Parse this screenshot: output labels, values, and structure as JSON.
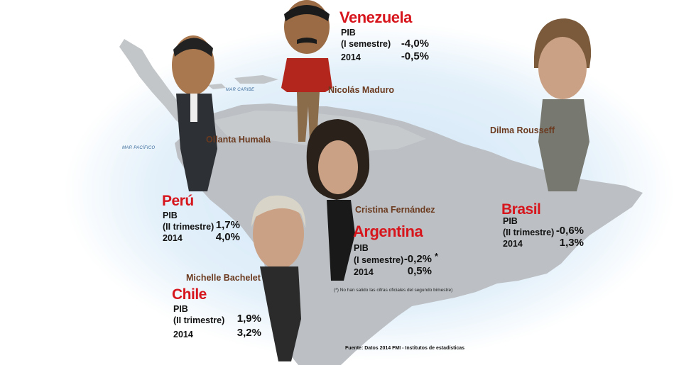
{
  "map": {
    "sea_labels": {
      "caribbean": "MAR CARIBE",
      "pacific": "MAR PACÍFICO"
    }
  },
  "countries": {
    "venezuela": {
      "name": "Venezuela",
      "pib_label": "PIB",
      "period_label": "(I semestre)",
      "period_value": "-4,0%",
      "year_label": "2014",
      "year_value": "-0,5%",
      "leader": "Nicolás Maduro"
    },
    "peru": {
      "name": "Perú",
      "pib_label": "PIB",
      "period_label": "(II trimestre)",
      "period_value": "1,7%",
      "year_label": "2014",
      "year_value": "4,0%",
      "leader": "Ollanta Humala"
    },
    "brasil": {
      "name": "Brasil",
      "pib_label": "PIB",
      "period_label": "(II trimestre)",
      "period_value": "-0,6%",
      "year_label": "2014",
      "year_value": "1,3%",
      "leader": "Dilma Rousseff"
    },
    "argentina": {
      "name": "Argentina",
      "pib_label": "PIB",
      "period_label": "(I semestre)",
      "period_value": "-0,2%",
      "asterisk": "*",
      "year_label": "2014",
      "year_value": "0,5%",
      "leader": "Cristina Fernández"
    },
    "chile": {
      "name": "Chile",
      "pib_label": "PIB",
      "period_label": "(II trimestre)",
      "period_value": "1,9%",
      "year_label": "2014",
      "year_value": "3,2%",
      "leader": "Michelle Bachelet"
    }
  },
  "footnote": "(*) No han salido las cifras oficiales del segundo bimestre)",
  "source": "Fuente: Datos 2014 FMI - Institutos de estadísticas",
  "colors": {
    "country_name": "#d6151c",
    "leader_name": "#6b3a1f",
    "land": "#bcc0c4",
    "sea_glow": "#d6eaf8"
  }
}
